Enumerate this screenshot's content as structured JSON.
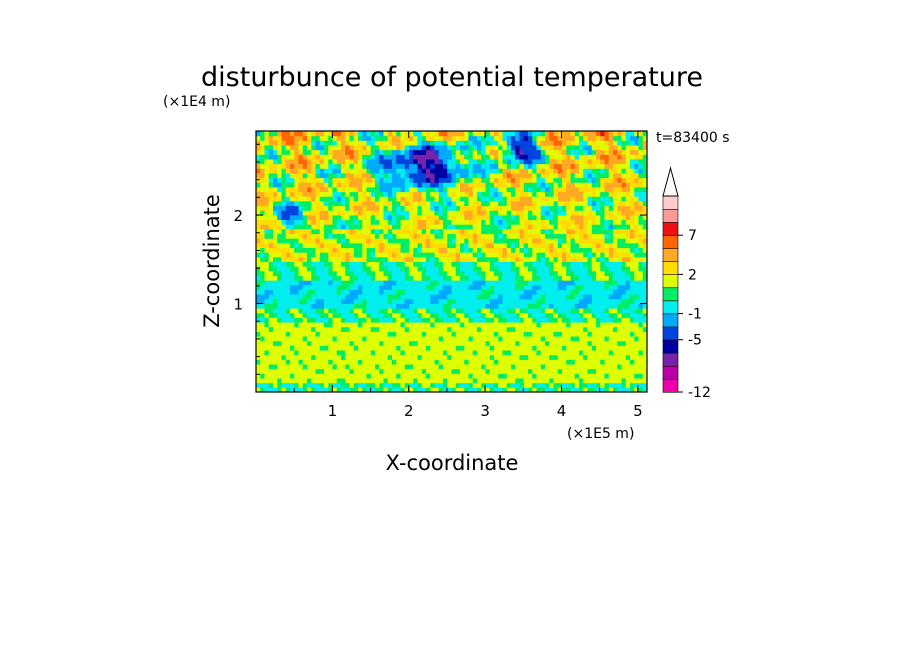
{
  "chart_data": {
    "type": "heatmap",
    "title": "disturbunce of potential temperature",
    "time_label": "t=83400 s",
    "xlabel": "X-coordinate",
    "ylabel": "Z-coordinate",
    "x_scale_label": "(×1E5 m)",
    "y_scale_label": "(×1E4 m)",
    "xlim": [
      0,
      5.12
    ],
    "ylim": [
      0,
      2.95
    ],
    "x_ticks": [
      1,
      2,
      3,
      4,
      5
    ],
    "x_tick_labels": [
      "1",
      "2",
      "3",
      "4",
      "5"
    ],
    "y_ticks": [
      1,
      2
    ],
    "y_tick_labels": [
      "1",
      "2"
    ],
    "colorbar": {
      "levels": [
        -12,
        -10,
        -8,
        -6,
        -5,
        -3,
        -1,
        0,
        1,
        2,
        3,
        5,
        7,
        8,
        10
      ],
      "colors": [
        "#ee00aa",
        "#bb00aa",
        "#7722aa",
        "#0000a0",
        "#0044dd",
        "#00aaff",
        "#00eeee",
        "#00ee66",
        "#ddff00",
        "#ffdd00",
        "#ffaa22",
        "#ff6600",
        "#ee1111",
        "#ff9999",
        "#ffcccc"
      ],
      "tick_labels": [
        "-12",
        "-5",
        "-1",
        "2",
        "7"
      ],
      "tick_values": [
        -12,
        -5,
        -1,
        2,
        7
      ],
      "extend": "max"
    },
    "field_description_rows": [
      {
        "z": [
          0.0,
          0.1
        ],
        "value": 0.6
      },
      {
        "z": [
          0.1,
          0.78
        ],
        "value": 1.3
      },
      {
        "z": [
          0.78,
          0.95
        ],
        "value": 0.4
      },
      {
        "z": [
          0.95,
          1.25
        ],
        "value": -0.5
      },
      {
        "z": [
          1.25,
          1.45
        ],
        "value": 0.5
      },
      {
        "z": [
          1.45,
          1.8
        ],
        "value": 1.6
      },
      {
        "z": [
          1.8,
          2.95
        ],
        "value": 2.3
      }
    ]
  }
}
